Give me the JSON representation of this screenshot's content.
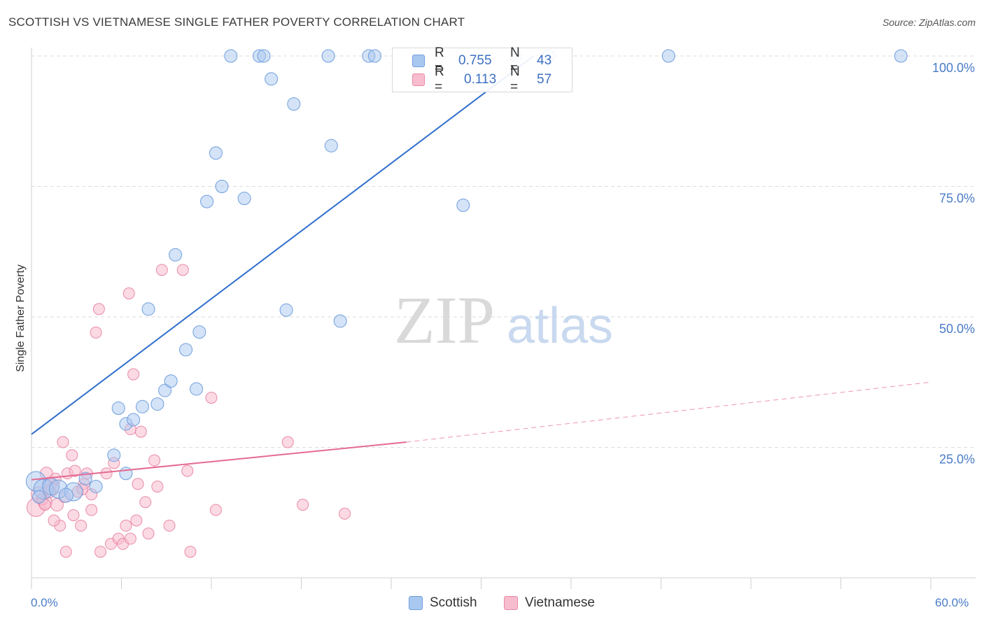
{
  "title": "SCOTTISH VS VIETNAMESE SINGLE FATHER POVERTY CORRELATION CHART",
  "source": "Source: ZipAtlas.com",
  "watermark": {
    "zip": "ZIP",
    "atlas": "atlas"
  },
  "legend_top": {
    "rows": [
      {
        "r_label": "R =",
        "r_value": "0.755",
        "n_label": "N =",
        "n_value": "43"
      },
      {
        "r_label": "R =",
        "r_value": "0.113",
        "n_label": "N =",
        "n_value": "57"
      }
    ]
  },
  "legend_bottom": {
    "items": [
      "Scottish",
      "Vietnamese"
    ]
  },
  "colors": {
    "scottish_fill": "#a9c8f0",
    "scottish_stroke": "#6f9fdd",
    "scottish_line": "#2f6ecb",
    "vietnamese_fill": "#f7bccd",
    "vietnamese_stroke": "#e98aa8",
    "vietnamese_line": "#e56a92",
    "tick_label": "#4a7cc7",
    "grid": "#dcdcdc"
  },
  "chart_data": {
    "type": "scatter",
    "title": "SCOTTISH VS VIETNAMESE SINGLE FATHER POVERTY CORRELATION CHART",
    "xlabel": "",
    "ylabel": "Single Father Poverty",
    "xlim": [
      0,
      60
    ],
    "ylim": [
      0,
      102
    ],
    "x_tick_labels": [
      "0.0%",
      "60.0%"
    ],
    "y_ticks": [
      25,
      50,
      75,
      100
    ],
    "y_tick_labels": [
      "25.0%",
      "50.0%",
      "75.0%",
      "100.0%"
    ],
    "grid": true,
    "series": [
      {
        "name": "Scottish",
        "r": 0.755,
        "n": 43,
        "trend": {
          "x": [
            0,
            33.5
          ],
          "y": [
            27.5,
            100
          ]
        },
        "points": [
          {
            "x": 0.3,
            "y": 18.5,
            "s": 14
          },
          {
            "x": 0.8,
            "y": 17.0,
            "s": 14
          },
          {
            "x": 1.3,
            "y": 17.5,
            "s": 12
          },
          {
            "x": 1.8,
            "y": 17.0,
            "s": 13
          },
          {
            "x": 2.8,
            "y": 16.5,
            "s": 13
          },
          {
            "x": 2.3,
            "y": 15.8,
            "s": 10
          },
          {
            "x": 3.6,
            "y": 19.0,
            "s": 9
          },
          {
            "x": 4.3,
            "y": 17.5,
            "s": 9
          },
          {
            "x": 5.5,
            "y": 23.5,
            "s": 9
          },
          {
            "x": 5.8,
            "y": 32.5,
            "s": 9
          },
          {
            "x": 6.3,
            "y": 20.0,
            "s": 9
          },
          {
            "x": 6.3,
            "y": 29.5,
            "s": 9
          },
          {
            "x": 6.8,
            "y": 30.3,
            "s": 9
          },
          {
            "x": 7.4,
            "y": 32.8,
            "s": 9
          },
          {
            "x": 7.8,
            "y": 51.5,
            "s": 9
          },
          {
            "x": 8.4,
            "y": 33.3,
            "s": 9
          },
          {
            "x": 8.9,
            "y": 35.9,
            "s": 9
          },
          {
            "x": 9.3,
            "y": 37.7,
            "s": 9
          },
          {
            "x": 9.6,
            "y": 61.9,
            "s": 9
          },
          {
            "x": 10.3,
            "y": 43.7,
            "s": 9
          },
          {
            "x": 11.2,
            "y": 47.1,
            "s": 9
          },
          {
            "x": 11.0,
            "y": 36.2,
            "s": 9
          },
          {
            "x": 11.7,
            "y": 72.1,
            "s": 9
          },
          {
            "x": 12.3,
            "y": 81.4,
            "s": 9
          },
          {
            "x": 12.7,
            "y": 75.0,
            "s": 9
          },
          {
            "x": 14.2,
            "y": 72.7,
            "s": 9
          },
          {
            "x": 13.3,
            "y": 100.0,
            "s": 9
          },
          {
            "x": 15.2,
            "y": 100.0,
            "s": 9
          },
          {
            "x": 15.5,
            "y": 100.0,
            "s": 9
          },
          {
            "x": 16.0,
            "y": 95.6,
            "s": 9
          },
          {
            "x": 17.0,
            "y": 51.3,
            "s": 9
          },
          {
            "x": 17.5,
            "y": 90.8,
            "s": 9
          },
          {
            "x": 19.8,
            "y": 100.0,
            "s": 9
          },
          {
            "x": 20.0,
            "y": 82.8,
            "s": 9
          },
          {
            "x": 20.6,
            "y": 49.2,
            "s": 9
          },
          {
            "x": 22.5,
            "y": 100.0,
            "s": 9
          },
          {
            "x": 22.9,
            "y": 100.0,
            "s": 9
          },
          {
            "x": 28.8,
            "y": 71.4,
            "s": 9
          },
          {
            "x": 32.3,
            "y": 100.0,
            "s": 9
          },
          {
            "x": 34.5,
            "y": 100.0,
            "s": 9
          },
          {
            "x": 42.5,
            "y": 100.0,
            "s": 9
          },
          {
            "x": 58.0,
            "y": 100.0,
            "s": 9
          },
          {
            "x": 0.5,
            "y": 15.5,
            "s": 9
          }
        ]
      },
      {
        "name": "Vietnamese",
        "r": 0.113,
        "n": 57,
        "trend": {
          "x": [
            0,
            25
          ],
          "y": [
            18.8,
            26.0
          ]
        },
        "trend_dashed": {
          "x": [
            25,
            60
          ],
          "y": [
            26.0,
            37.5
          ]
        },
        "points": [
          {
            "x": 0.3,
            "y": 13.5,
            "s": 13
          },
          {
            "x": 0.5,
            "y": 16.0,
            "s": 11
          },
          {
            "x": 0.9,
            "y": 14.5,
            "s": 10
          },
          {
            "x": 1.2,
            "y": 18.0,
            "s": 10
          },
          {
            "x": 1.0,
            "y": 20.0,
            "s": 9
          },
          {
            "x": 1.4,
            "y": 17.0,
            "s": 9
          },
          {
            "x": 1.7,
            "y": 14.0,
            "s": 9
          },
          {
            "x": 1.2,
            "y": 16.5,
            "s": 9
          },
          {
            "x": 1.9,
            "y": 10.0,
            "s": 8
          },
          {
            "x": 2.1,
            "y": 26.0,
            "s": 8
          },
          {
            "x": 2.3,
            "y": 5.0,
            "s": 8
          },
          {
            "x": 2.4,
            "y": 20.0,
            "s": 8
          },
          {
            "x": 2.7,
            "y": 23.5,
            "s": 8
          },
          {
            "x": 2.8,
            "y": 12.0,
            "s": 8
          },
          {
            "x": 2.9,
            "y": 20.5,
            "s": 8
          },
          {
            "x": 3.1,
            "y": 16.5,
            "s": 8
          },
          {
            "x": 3.3,
            "y": 10.0,
            "s": 8
          },
          {
            "x": 3.5,
            "y": 18.0,
            "s": 8
          },
          {
            "x": 3.7,
            "y": 20.0,
            "s": 8
          },
          {
            "x": 4.0,
            "y": 13.0,
            "s": 8
          },
          {
            "x": 4.0,
            "y": 16.0,
            "s": 8
          },
          {
            "x": 4.3,
            "y": 47.0,
            "s": 8
          },
          {
            "x": 4.5,
            "y": 51.5,
            "s": 8
          },
          {
            "x": 4.6,
            "y": 5.0,
            "s": 8
          },
          {
            "x": 5.0,
            "y": 20.0,
            "s": 8
          },
          {
            "x": 5.3,
            "y": 6.5,
            "s": 8
          },
          {
            "x": 5.8,
            "y": 7.5,
            "s": 8
          },
          {
            "x": 6.1,
            "y": 6.5,
            "s": 8
          },
          {
            "x": 6.3,
            "y": 10.0,
            "s": 8
          },
          {
            "x": 6.5,
            "y": 54.5,
            "s": 8
          },
          {
            "x": 6.6,
            "y": 28.5,
            "s": 8
          },
          {
            "x": 6.6,
            "y": 7.5,
            "s": 8
          },
          {
            "x": 6.8,
            "y": 39.0,
            "s": 8
          },
          {
            "x": 7.0,
            "y": 11.0,
            "s": 8
          },
          {
            "x": 7.1,
            "y": 18.0,
            "s": 8
          },
          {
            "x": 7.3,
            "y": 28.0,
            "s": 8
          },
          {
            "x": 7.6,
            "y": 14.5,
            "s": 8
          },
          {
            "x": 7.8,
            "y": 8.5,
            "s": 8
          },
          {
            "x": 8.2,
            "y": 22.5,
            "s": 8
          },
          {
            "x": 8.4,
            "y": 17.5,
            "s": 8
          },
          {
            "x": 8.7,
            "y": 59.0,
            "s": 8
          },
          {
            "x": 9.2,
            "y": 10.0,
            "s": 8
          },
          {
            "x": 10.1,
            "y": 59.0,
            "s": 8
          },
          {
            "x": 10.4,
            "y": 20.5,
            "s": 8
          },
          {
            "x": 10.6,
            "y": 5.0,
            "s": 8
          },
          {
            "x": 12.0,
            "y": 34.5,
            "s": 8
          },
          {
            "x": 12.3,
            "y": 13.0,
            "s": 8
          },
          {
            "x": 17.1,
            "y": 26.0,
            "s": 8
          },
          {
            "x": 18.1,
            "y": 14.0,
            "s": 8
          },
          {
            "x": 20.9,
            "y": 12.3,
            "s": 8
          },
          {
            "x": 0.7,
            "y": 15.0,
            "s": 8
          },
          {
            "x": 1.6,
            "y": 19.0,
            "s": 8
          },
          {
            "x": 2.2,
            "y": 15.5,
            "s": 8
          },
          {
            "x": 3.4,
            "y": 17.0,
            "s": 8
          },
          {
            "x": 0.9,
            "y": 14.0,
            "s": 8
          },
          {
            "x": 1.5,
            "y": 11.0,
            "s": 8
          },
          {
            "x": 5.5,
            "y": 22.0,
            "s": 8
          }
        ]
      }
    ]
  }
}
